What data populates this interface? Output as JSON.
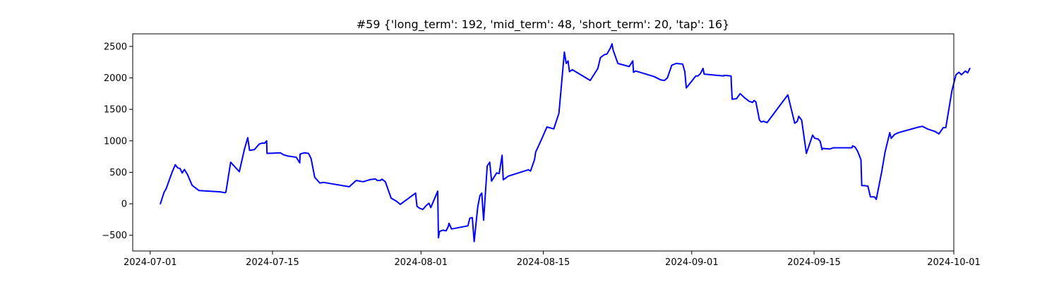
{
  "chart_data": {
    "type": "line",
    "title": "#59 {'long_term': 192, 'mid_term': 48, 'short_term': 20, 'tap': 16}",
    "xlabel": "",
    "ylabel": "",
    "x_axis": "date",
    "xlim": [
      "2024-06-29",
      "2024-10-01"
    ],
    "ylim": [
      -750,
      2700
    ],
    "grid": false,
    "xticks": [
      "2024-07-01",
      "2024-07-15",
      "2024-08-01",
      "2024-08-15",
      "2024-09-01",
      "2024-09-15",
      "2024-10-01"
    ],
    "yticks": [
      -500,
      0,
      500,
      1000,
      1500,
      2000,
      2500
    ],
    "series": [
      {
        "color": "#0000ff",
        "points": [
          [
            "2024-07-02T04:00",
            0
          ],
          [
            "2024-07-02T14:00",
            180
          ],
          [
            "2024-07-02T20:00",
            240
          ],
          [
            "2024-07-03T12:00",
            500
          ],
          [
            "2024-07-03T21:00",
            620
          ],
          [
            "2024-07-04T04:00",
            570
          ],
          [
            "2024-07-04T10:00",
            560
          ],
          [
            "2024-07-04T16:00",
            490
          ],
          [
            "2024-07-04T22:00",
            545
          ],
          [
            "2024-07-05T07:00",
            460
          ],
          [
            "2024-07-05T19:00",
            295
          ],
          [
            "2024-07-06T07:00",
            240
          ],
          [
            "2024-07-06T14:00",
            210
          ],
          [
            "2024-07-09T00:00",
            190
          ],
          [
            "2024-07-09T14:00",
            175
          ],
          [
            "2024-07-09T16:00",
            185
          ],
          [
            "2024-07-10T05:00",
            660
          ],
          [
            "2024-07-11T05:00",
            510
          ],
          [
            "2024-07-11T19:00",
            870
          ],
          [
            "2024-07-12T04:00",
            1050
          ],
          [
            "2024-07-12T09:00",
            850
          ],
          [
            "2024-07-12T22:00",
            860
          ],
          [
            "2024-07-13T12:00",
            950
          ],
          [
            "2024-07-13T20:00",
            965
          ],
          [
            "2024-07-14T02:00",
            960
          ],
          [
            "2024-07-14T08:00",
            1000
          ],
          [
            "2024-07-14T09:00",
            800
          ],
          [
            "2024-07-15T03:00",
            805
          ],
          [
            "2024-07-15T21:00",
            810
          ],
          [
            "2024-07-16T06:00",
            780
          ],
          [
            "2024-07-16T17:00",
            760
          ],
          [
            "2024-07-17T17:00",
            740
          ],
          [
            "2024-07-18T03:00",
            650
          ],
          [
            "2024-07-18T04:00",
            790
          ],
          [
            "2024-07-18T16:00",
            810
          ],
          [
            "2024-07-19T03:00",
            800
          ],
          [
            "2024-07-19T10:00",
            720
          ],
          [
            "2024-07-19T20:00",
            420
          ],
          [
            "2024-07-20T10:00",
            330
          ],
          [
            "2024-07-20T20:00",
            340
          ],
          [
            "2024-07-23T19:00",
            270
          ],
          [
            "2024-07-24T14:00",
            370
          ],
          [
            "2024-07-25T09:00",
            350
          ],
          [
            "2024-07-26T05:00",
            385
          ],
          [
            "2024-07-26T19:00",
            395
          ],
          [
            "2024-07-27T00:00",
            370
          ],
          [
            "2024-07-27T08:00",
            370
          ],
          [
            "2024-07-27T13:00",
            390
          ],
          [
            "2024-07-27T22:00",
            350
          ],
          [
            "2024-07-28T14:00",
            90
          ],
          [
            "2024-07-29T05:00",
            40
          ],
          [
            "2024-07-29T15:00",
            -10
          ],
          [
            "2024-07-31T09:00",
            170
          ],
          [
            "2024-07-31T13:00",
            -40
          ],
          [
            "2024-07-31T20:00",
            -70
          ],
          [
            "2024-08-01T05:00",
            -90
          ],
          [
            "2024-08-01T14:00",
            -30
          ],
          [
            "2024-08-01T22:00",
            10
          ],
          [
            "2024-08-02T03:00",
            -60
          ],
          [
            "2024-08-02T22:00",
            200
          ],
          [
            "2024-08-03T00:00",
            -540
          ],
          [
            "2024-08-03T03:00",
            -440
          ],
          [
            "2024-08-03T12:00",
            -420
          ],
          [
            "2024-08-03T21:00",
            -430
          ],
          [
            "2024-08-04T03:00",
            -360
          ],
          [
            "2024-08-04T05:00",
            -310
          ],
          [
            "2024-08-04T12:00",
            -400
          ],
          [
            "2024-08-06T09:00",
            -350
          ],
          [
            "2024-08-06T14:00",
            -230
          ],
          [
            "2024-08-06T21:00",
            -220
          ],
          [
            "2024-08-07T02:00",
            -600
          ],
          [
            "2024-08-07T12:00",
            -50
          ],
          [
            "2024-08-07T18:00",
            130
          ],
          [
            "2024-08-07T23:00",
            170
          ],
          [
            "2024-08-08T04:00",
            -260
          ],
          [
            "2024-08-08T14:00",
            600
          ],
          [
            "2024-08-08T21:00",
            660
          ],
          [
            "2024-08-09T02:00",
            360
          ],
          [
            "2024-08-09T16:00",
            490
          ],
          [
            "2024-08-09T23:00",
            480
          ],
          [
            "2024-08-10T07:00",
            770
          ],
          [
            "2024-08-10T10:00",
            380
          ],
          [
            "2024-08-11T00:00",
            440
          ],
          [
            "2024-08-13T07:00",
            540
          ],
          [
            "2024-08-13T13:00",
            520
          ],
          [
            "2024-08-14T00:00",
            700
          ],
          [
            "2024-08-14T03:00",
            820
          ],
          [
            "2024-08-14T19:00",
            1020
          ],
          [
            "2024-08-15T10:00",
            1220
          ],
          [
            "2024-08-16T05:00",
            1190
          ],
          [
            "2024-08-16T19:00",
            1440
          ],
          [
            "2024-08-17T10:00",
            2410
          ],
          [
            "2024-08-17T15:00",
            2230
          ],
          [
            "2024-08-17T20:00",
            2270
          ],
          [
            "2024-08-18T00:00",
            2100
          ],
          [
            "2024-08-18T08:00",
            2130
          ],
          [
            "2024-08-20T09:00",
            1960
          ],
          [
            "2024-08-21T06:00",
            2150
          ],
          [
            "2024-08-21T13:00",
            2320
          ],
          [
            "2024-08-21T17:00",
            2340
          ],
          [
            "2024-08-22T00:00",
            2370
          ],
          [
            "2024-08-22T07:00",
            2380
          ],
          [
            "2024-08-22T16:00",
            2470
          ],
          [
            "2024-08-22T21:00",
            2540
          ],
          [
            "2024-08-23T00:00",
            2440
          ],
          [
            "2024-08-23T13:00",
            2230
          ],
          [
            "2024-08-24T20:00",
            2180
          ],
          [
            "2024-08-25T06:00",
            2270
          ],
          [
            "2024-08-25T08:00",
            2090
          ],
          [
            "2024-08-25T14:00",
            2110
          ],
          [
            "2024-08-27T17:00",
            2020
          ],
          [
            "2024-08-28T10:00",
            1970
          ],
          [
            "2024-08-28T21:00",
            1960
          ],
          [
            "2024-08-29T05:00",
            2000
          ],
          [
            "2024-08-29T17:00",
            2200
          ],
          [
            "2024-08-30T05:00",
            2230
          ],
          [
            "2024-08-30T23:00",
            2220
          ],
          [
            "2024-08-31T05:00",
            2100
          ],
          [
            "2024-08-31T09:00",
            1840
          ],
          [
            "2024-08-31T23:00",
            1940
          ],
          [
            "2024-09-01T11:00",
            2030
          ],
          [
            "2024-09-01T17:00",
            2030
          ],
          [
            "2024-09-02T00:00",
            2070
          ],
          [
            "2024-09-02T07:00",
            2150
          ],
          [
            "2024-09-02T10:00",
            2060
          ],
          [
            "2024-09-04T16:00",
            2030
          ],
          [
            "2024-09-04T17:00",
            2040
          ],
          [
            "2024-09-05T12:00",
            2030
          ],
          [
            "2024-09-05T13:00",
            1880
          ],
          [
            "2024-09-05T15:00",
            1660
          ],
          [
            "2024-09-06T03:00",
            1670
          ],
          [
            "2024-09-06T13:00",
            1750
          ],
          [
            "2024-09-07T00:00",
            1690
          ],
          [
            "2024-09-07T13:00",
            1630
          ],
          [
            "2024-09-07T23:00",
            1610
          ],
          [
            "2024-09-08T03:00",
            1640
          ],
          [
            "2024-09-08T08:00",
            1620
          ],
          [
            "2024-09-08T18:00",
            1330
          ],
          [
            "2024-09-08T23:00",
            1300
          ],
          [
            "2024-09-09T05:00",
            1310
          ],
          [
            "2024-09-09T15:00",
            1290
          ],
          [
            "2024-09-12T00:00",
            1730
          ],
          [
            "2024-09-12T19:00",
            1280
          ],
          [
            "2024-09-13T02:00",
            1310
          ],
          [
            "2024-09-13T06:00",
            1390
          ],
          [
            "2024-09-13T14:00",
            1330
          ],
          [
            "2024-09-14T03:00",
            800
          ],
          [
            "2024-09-14T20:00",
            1090
          ],
          [
            "2024-09-15T02:00",
            1040
          ],
          [
            "2024-09-15T11:00",
            1030
          ],
          [
            "2024-09-15T17:00",
            990
          ],
          [
            "2024-09-15T22:00",
            860
          ],
          [
            "2024-09-16T00:00",
            880
          ],
          [
            "2024-09-16T19:00",
            870
          ],
          [
            "2024-09-17T05:00",
            890
          ],
          [
            "2024-09-19T08:00",
            890
          ],
          [
            "2024-09-19T10:00",
            920
          ],
          [
            "2024-09-19T17:00",
            900
          ],
          [
            "2024-09-20T00:00",
            830
          ],
          [
            "2024-09-20T09:00",
            700
          ],
          [
            "2024-09-20T11:00",
            290
          ],
          [
            "2024-09-20T17:00",
            290
          ],
          [
            "2024-09-21T04:00",
            280
          ],
          [
            "2024-09-21T11:00",
            110
          ],
          [
            "2024-09-21T22:00",
            110
          ],
          [
            "2024-09-22T03:00",
            70
          ],
          [
            "2024-09-22T18:00",
            510
          ],
          [
            "2024-09-23T03:00",
            820
          ],
          [
            "2024-09-23T16:00",
            1130
          ],
          [
            "2024-09-23T20:00",
            1040
          ],
          [
            "2024-09-24T05:00",
            1100
          ],
          [
            "2024-09-24T16:00",
            1130
          ],
          [
            "2024-09-27T00:00",
            1220
          ],
          [
            "2024-09-27T10:00",
            1230
          ],
          [
            "2024-09-27T23:00",
            1190
          ],
          [
            "2024-09-28T20:00",
            1150
          ],
          [
            "2024-09-29T07:00",
            1110
          ],
          [
            "2024-09-29T19:00",
            1210
          ],
          [
            "2024-09-30T02:00",
            1210
          ],
          [
            "2024-09-30T19:00",
            1800
          ],
          [
            "2024-10-01T06:00",
            2050
          ],
          [
            "2024-10-01T14:00",
            2090
          ],
          [
            "2024-10-01T21:00",
            2050
          ],
          [
            "2024-10-02T08:00",
            2110
          ],
          [
            "2024-10-02T14:00",
            2080
          ],
          [
            "2024-10-02T20:00",
            2150
          ]
        ]
      }
    ]
  }
}
